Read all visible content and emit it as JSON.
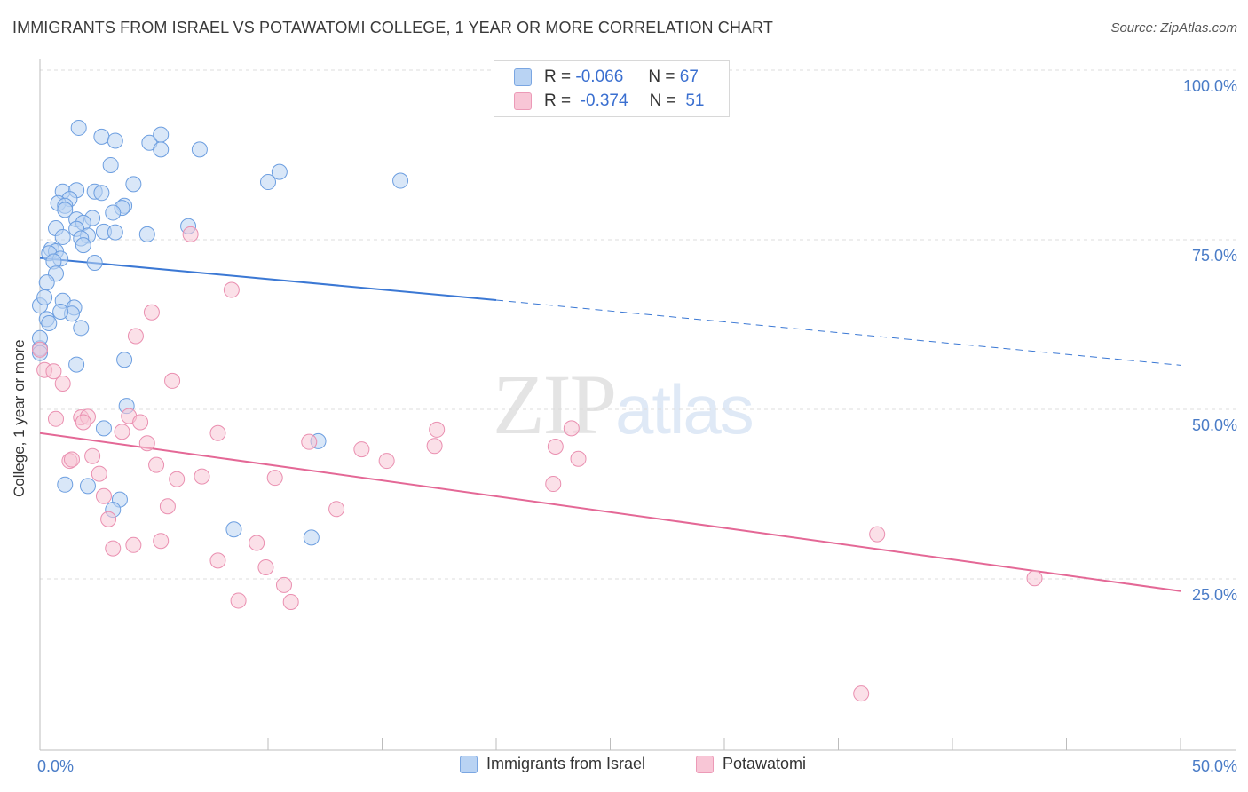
{
  "title": "IMMIGRANTS FROM ISRAEL VS POTAWATOMI COLLEGE, 1 YEAR OR MORE CORRELATION CHART",
  "source": "Source: ZipAtlas.com",
  "watermark": {
    "zip": "ZIP",
    "atlas": "atlas"
  },
  "colors": {
    "blue": "#3b78d4",
    "blue_fill": "#b9d3f3",
    "pink": "#e46896",
    "pink_fill": "#f8c6d6",
    "axis_text": "#4a7cc7"
  },
  "legend": {
    "r_label": "R =",
    "n_label": "N =",
    "series1": {
      "r": "-0.066",
      "n": "67"
    },
    "series2": {
      "r": "-0.374",
      "n": "51"
    }
  },
  "bottom_legend": {
    "series1": "Immigrants from Israel",
    "series2": "Potawatomi"
  },
  "chart_data": {
    "type": "scatter",
    "title": "IMMIGRANTS FROM ISRAEL VS POTAWATOMI COLLEGE, 1 YEAR OR MORE CORRELATION CHART",
    "xlabel": "",
    "ylabel": "College, 1 year or more",
    "xlim": [
      0,
      50
    ],
    "ylim": [
      0,
      100
    ],
    "x_tick_labels": [
      "0.0%",
      "50.0%"
    ],
    "y_tick_labels": [
      "100.0%",
      "75.0%",
      "50.0%",
      "25.0%"
    ],
    "y_ticks": [
      100,
      75,
      50,
      25
    ],
    "series": [
      {
        "name": "Immigrants from Israel",
        "color": "#3b78d4",
        "trend": {
          "x0": 0,
          "y0": 72.3,
          "x1": 20,
          "y1": 66.1,
          "dashed_to_x": 50,
          "dashed_to_y": 56.5
        },
        "points": [
          [
            1.7,
            91.5
          ],
          [
            2.7,
            90.2
          ],
          [
            3.3,
            89.6
          ],
          [
            4.8,
            89.3
          ],
          [
            5.3,
            90.5
          ],
          [
            5.3,
            88.3
          ],
          [
            7.0,
            88.3
          ],
          [
            3.1,
            86.0
          ],
          [
            10.5,
            85.0
          ],
          [
            10.0,
            83.5
          ],
          [
            15.8,
            83.7
          ],
          [
            4.1,
            83.2
          ],
          [
            1.0,
            82.1
          ],
          [
            1.6,
            82.3
          ],
          [
            2.4,
            82.1
          ],
          [
            1.3,
            81.0
          ],
          [
            2.7,
            81.9
          ],
          [
            0.8,
            80.4
          ],
          [
            1.1,
            80.0
          ],
          [
            3.7,
            80.0
          ],
          [
            3.6,
            79.7
          ],
          [
            3.2,
            79.0
          ],
          [
            1.1,
            79.4
          ],
          [
            1.6,
            78.0
          ],
          [
            2.3,
            78.2
          ],
          [
            1.9,
            77.5
          ],
          [
            6.5,
            77.0
          ],
          [
            0.7,
            76.7
          ],
          [
            1.6,
            76.6
          ],
          [
            2.8,
            76.2
          ],
          [
            3.3,
            76.1
          ],
          [
            4.7,
            75.8
          ],
          [
            2.1,
            75.6
          ],
          [
            1.8,
            75.2
          ],
          [
            1.9,
            74.2
          ],
          [
            1.0,
            75.4
          ],
          [
            0.5,
            73.6
          ],
          [
            0.7,
            73.3
          ],
          [
            0.4,
            73.0
          ],
          [
            0.9,
            72.2
          ],
          [
            0.6,
            71.8
          ],
          [
            2.4,
            71.6
          ],
          [
            0.7,
            70.0
          ],
          [
            0.3,
            68.7
          ],
          [
            1.0,
            66.0
          ],
          [
            1.5,
            65.0
          ],
          [
            1.4,
            64.1
          ],
          [
            0.9,
            64.4
          ],
          [
            0.0,
            65.3
          ],
          [
            0.3,
            63.3
          ],
          [
            0.4,
            62.7
          ],
          [
            1.8,
            62.0
          ],
          [
            0.0,
            59.0
          ],
          [
            3.7,
            57.3
          ],
          [
            1.6,
            56.6
          ],
          [
            3.8,
            50.5
          ],
          [
            2.8,
            47.2
          ],
          [
            12.2,
            45.3
          ],
          [
            1.1,
            38.9
          ],
          [
            2.1,
            38.7
          ],
          [
            3.5,
            36.7
          ],
          [
            3.2,
            35.2
          ],
          [
            8.5,
            32.3
          ],
          [
            11.9,
            31.1
          ],
          [
            0.2,
            66.5
          ],
          [
            0.0,
            60.5
          ],
          [
            0.0,
            58.3
          ]
        ]
      },
      {
        "name": "Potawatomi",
        "color": "#e46896",
        "trend": {
          "x0": 0,
          "y0": 46.5,
          "x1": 50,
          "y1": 23.2
        },
        "points": [
          [
            0.0,
            58.8
          ],
          [
            0.2,
            55.8
          ],
          [
            0.6,
            55.6
          ],
          [
            1.0,
            53.8
          ],
          [
            6.6,
            75.8
          ],
          [
            8.4,
            67.6
          ],
          [
            4.9,
            64.3
          ],
          [
            4.2,
            60.8
          ],
          [
            5.8,
            54.2
          ],
          [
            0.7,
            48.6
          ],
          [
            1.8,
            48.8
          ],
          [
            2.1,
            48.9
          ],
          [
            1.9,
            48.1
          ],
          [
            3.9,
            49.0
          ],
          [
            4.4,
            48.1
          ],
          [
            3.6,
            46.7
          ],
          [
            7.8,
            46.5
          ],
          [
            4.7,
            45.0
          ],
          [
            11.8,
            45.2
          ],
          [
            17.4,
            47.0
          ],
          [
            23.3,
            47.2
          ],
          [
            17.3,
            44.6
          ],
          [
            14.1,
            44.1
          ],
          [
            15.2,
            42.4
          ],
          [
            22.6,
            44.5
          ],
          [
            23.6,
            42.7
          ],
          [
            1.3,
            42.4
          ],
          [
            1.4,
            42.6
          ],
          [
            2.3,
            43.1
          ],
          [
            5.1,
            41.8
          ],
          [
            6.0,
            39.7
          ],
          [
            7.1,
            40.1
          ],
          [
            10.3,
            39.9
          ],
          [
            2.6,
            40.5
          ],
          [
            22.5,
            39.0
          ],
          [
            2.8,
            37.2
          ],
          [
            5.6,
            35.7
          ],
          [
            13.0,
            35.3
          ],
          [
            3.0,
            33.8
          ],
          [
            5.3,
            30.6
          ],
          [
            9.5,
            30.3
          ],
          [
            4.1,
            30.0
          ],
          [
            3.2,
            29.5
          ],
          [
            7.8,
            27.7
          ],
          [
            9.9,
            26.7
          ],
          [
            36.7,
            31.6
          ],
          [
            10.7,
            24.1
          ],
          [
            43.6,
            25.1
          ],
          [
            8.7,
            21.8
          ],
          [
            11.0,
            21.6
          ],
          [
            36.0,
            8.1
          ]
        ]
      }
    ]
  }
}
